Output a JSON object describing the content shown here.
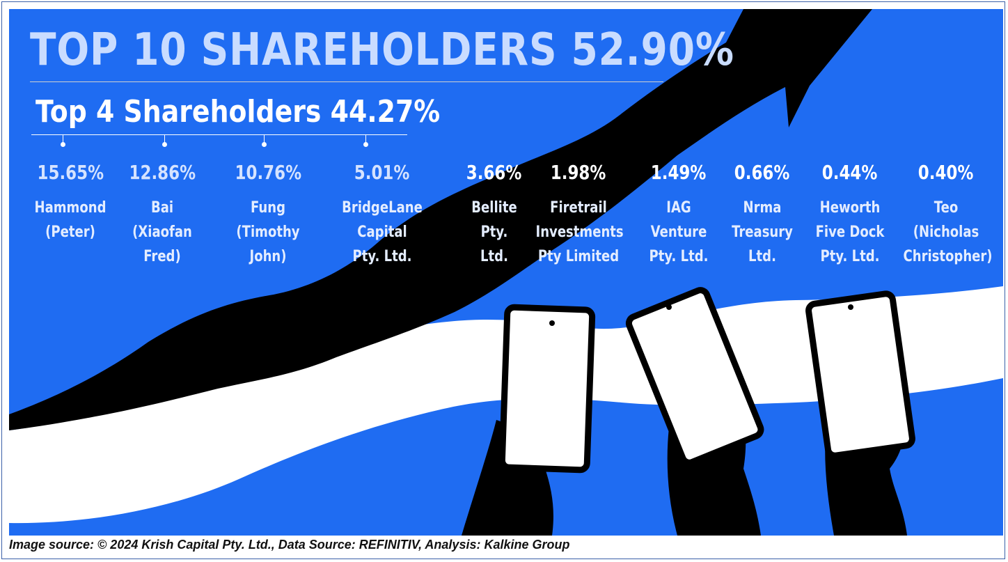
{
  "title": "TOP 10 SHAREHOLDERS 52.90%",
  "subtitle": "Top 4 Shareholders 44.27%",
  "shareholders": [
    {
      "pct": "15.65%",
      "lines": [
        "Hammond",
        "(Peter)"
      ]
    },
    {
      "pct": "12.86%",
      "lines": [
        "Bai",
        "(Xiaofan",
        "Fred)"
      ]
    },
    {
      "pct": "10.76%",
      "lines": [
        "Fung",
        "(Timothy",
        "John)"
      ]
    },
    {
      "pct": "5.01%",
      "lines": [
        "BridgeLane",
        "Capital",
        "Pty. Ltd."
      ]
    },
    {
      "pct": "3.66%",
      "lines": [
        "Bellite",
        "Pty.",
        "Ltd."
      ]
    },
    {
      "pct": "1.98%",
      "lines": [
        "Firetrail",
        "Investments",
        "Pty Limited"
      ]
    },
    {
      "pct": "1.49%",
      "lines": [
        "IAG",
        "Venture",
        "Pty. Ltd."
      ]
    },
    {
      "pct": "0.66%",
      "lines": [
        "Nrma",
        "Treasury",
        "Ltd."
      ]
    },
    {
      "pct": "0.44%",
      "lines": [
        "Heworth",
        "Five Dock",
        "Pty. Ltd."
      ]
    },
    {
      "pct": "0.40%",
      "lines": [
        "Teo",
        "(Nicholas",
        "Christopher)"
      ]
    }
  ],
  "credit": "Image source: © 2024 Krish Capital Pty. Ltd., Data Source: REFINITIV, Analysis: Kalkine Group",
  "colors": {
    "background": "#1f6cf2",
    "arrow": "#000000",
    "wave": "#ffffff",
    "title": "#c9dcff"
  },
  "icons": [
    "trend-arrow-icon",
    "smartphone-icon",
    "hand-icon"
  ]
}
